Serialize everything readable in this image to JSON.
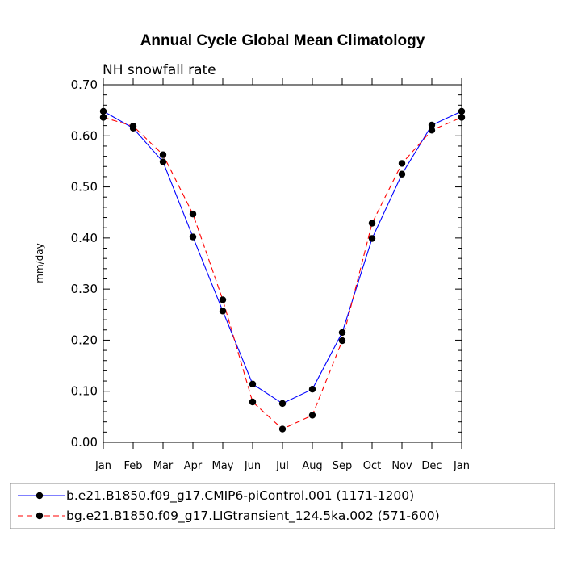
{
  "chart_data": {
    "type": "line",
    "title": "Annual Cycle Global Mean Climatology",
    "subtitle": "NH snowfall rate",
    "xlabel": "",
    "ylabel": "mm/day",
    "ylim": [
      0,
      0.7
    ],
    "yticks": [
      0.0,
      0.1,
      0.2,
      0.3,
      0.4,
      0.5,
      0.6,
      0.7
    ],
    "ytick_labels": [
      "0.00",
      "0.10",
      "0.20",
      "0.30",
      "0.40",
      "0.50",
      "0.60",
      "0.70"
    ],
    "categories": [
      "Jan",
      "Feb",
      "Mar",
      "Apr",
      "May",
      "Jun",
      "Jul",
      "Aug",
      "Sep",
      "Oct",
      "Nov",
      "Dec",
      "Jan"
    ],
    "series": [
      {
        "name": "b.e21.B1850.f09_g17.CMIP6-piControl.001 (1171-1200)",
        "color": "#0000ff",
        "dash": "solid",
        "values": [
          0.648,
          0.615,
          0.549,
          0.402,
          0.257,
          0.114,
          0.076,
          0.104,
          0.215,
          0.399,
          0.525,
          0.621,
          0.648
        ]
      },
      {
        "name": "bg.e21.B1850.f09_g17.LIGtransient_124.5ka.002 (571-600)",
        "color": "#ff0000",
        "dash": "dashed",
        "values": [
          0.636,
          0.619,
          0.563,
          0.447,
          0.279,
          0.079,
          0.026,
          0.053,
          0.199,
          0.429,
          0.546,
          0.611,
          0.636
        ]
      }
    ],
    "legend": "bottom",
    "grid": false
  }
}
